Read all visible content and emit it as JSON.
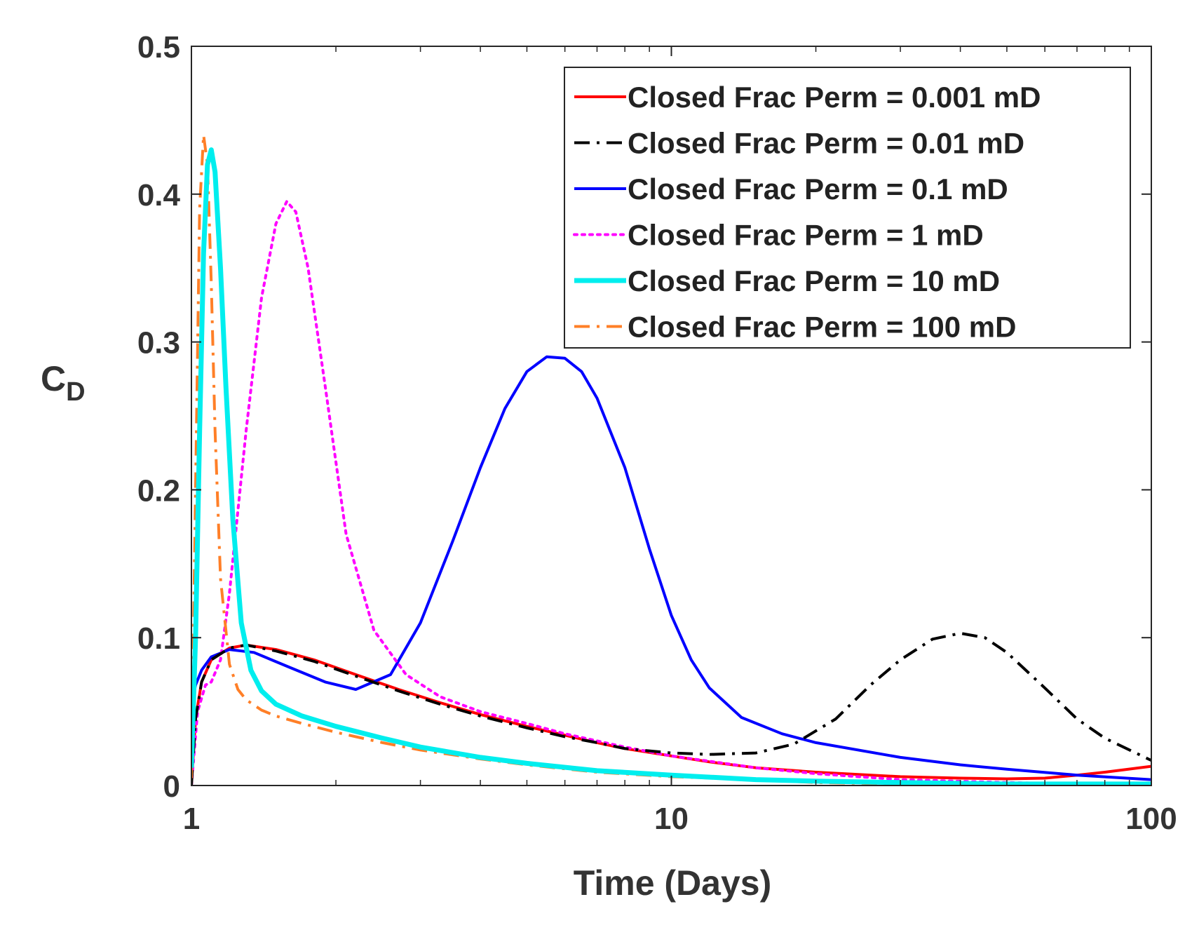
{
  "chart_data": {
    "type": "line",
    "title": "",
    "xlabel": "Time (Days)",
    "ylabel_main": "C",
    "ylabel_sub": "D",
    "xscale": "log",
    "xlim": [
      1,
      100
    ],
    "ylim": [
      0,
      0.5
    ],
    "xticks": [
      1,
      10,
      100
    ],
    "xtick_labels": [
      "1",
      "10",
      "100"
    ],
    "yticks": [
      0,
      0.1,
      0.2,
      0.3,
      0.4,
      0.5
    ],
    "ytick_labels": [
      "0",
      "0.1",
      "0.2",
      "0.3",
      "0.4",
      "0.5"
    ],
    "legend_position": "top-right",
    "series": [
      {
        "name": "Closed Frac Perm = 0.001 mD",
        "color": "#ff0000",
        "style": "solid",
        "x": [
          1,
          1.02,
          1.05,
          1.1,
          1.2,
          1.3,
          1.5,
          1.8,
          2.2,
          2.7,
          3.3,
          4,
          5,
          6,
          7,
          8,
          10,
          12,
          15,
          20,
          30,
          40,
          50,
          60,
          70,
          80,
          100
        ],
        "y": [
          0,
          0.045,
          0.07,
          0.085,
          0.093,
          0.095,
          0.092,
          0.085,
          0.075,
          0.065,
          0.056,
          0.048,
          0.04,
          0.034,
          0.029,
          0.025,
          0.02,
          0.016,
          0.012,
          0.009,
          0.006,
          0.005,
          0.0045,
          0.005,
          0.007,
          0.009,
          0.013
        ]
      },
      {
        "name": "Closed Frac Perm = 0.01 mD",
        "color": "#000000",
        "style": "dashdot",
        "x": [
          1,
          1.02,
          1.05,
          1.1,
          1.2,
          1.3,
          1.5,
          1.8,
          2.2,
          2.7,
          3.3,
          4,
          5,
          6,
          7,
          8,
          10,
          12,
          15,
          18,
          22,
          26,
          30,
          35,
          40,
          45,
          50,
          60,
          70,
          80,
          100
        ],
        "y": [
          0,
          0.045,
          0.07,
          0.085,
          0.093,
          0.095,
          0.091,
          0.084,
          0.074,
          0.064,
          0.055,
          0.047,
          0.039,
          0.033,
          0.029,
          0.025,
          0.022,
          0.021,
          0.022,
          0.028,
          0.045,
          0.068,
          0.085,
          0.099,
          0.103,
          0.1,
          0.09,
          0.066,
          0.045,
          0.032,
          0.017
        ]
      },
      {
        "name": "Closed Frac Perm = 0.1 mD",
        "color": "#0000ff",
        "style": "solid",
        "x": [
          1,
          1.02,
          1.05,
          1.1,
          1.2,
          1.35,
          1.6,
          1.9,
          2.2,
          2.6,
          3,
          3.5,
          4,
          4.5,
          5,
          5.5,
          6,
          6.5,
          7,
          8,
          9,
          10,
          11,
          12,
          14,
          17,
          20,
          30,
          40,
          50,
          70,
          100
        ],
        "y": [
          0.055,
          0.068,
          0.078,
          0.087,
          0.092,
          0.09,
          0.08,
          0.07,
          0.065,
          0.075,
          0.11,
          0.165,
          0.215,
          0.255,
          0.28,
          0.29,
          0.289,
          0.28,
          0.262,
          0.215,
          0.16,
          0.115,
          0.085,
          0.066,
          0.046,
          0.035,
          0.029,
          0.019,
          0.014,
          0.011,
          0.007,
          0.004
        ]
      },
      {
        "name": "Closed Frac Perm = 1 mD",
        "color": "#ff00ff",
        "style": "dotted",
        "x": [
          1,
          1.03,
          1.07,
          1.1,
          1.15,
          1.2,
          1.3,
          1.4,
          1.5,
          1.58,
          1.65,
          1.75,
          1.9,
          2.1,
          2.4,
          2.8,
          3.3,
          4,
          5,
          6,
          8,
          10,
          15,
          20,
          30,
          50,
          70,
          100
        ],
        "y": [
          0,
          0.05,
          0.068,
          0.07,
          0.085,
          0.13,
          0.24,
          0.33,
          0.38,
          0.395,
          0.388,
          0.35,
          0.27,
          0.17,
          0.105,
          0.075,
          0.06,
          0.05,
          0.042,
          0.035,
          0.026,
          0.02,
          0.012,
          0.008,
          0.004,
          0.002,
          0.001,
          0.001
        ]
      },
      {
        "name": "Closed Frac Perm = 10 mD",
        "color": "#00eeee",
        "style": "solid",
        "x": [
          1,
          1.02,
          1.04,
          1.06,
          1.08,
          1.1,
          1.12,
          1.15,
          1.18,
          1.22,
          1.27,
          1.33,
          1.4,
          1.5,
          1.7,
          2,
          2.5,
          3,
          4,
          5,
          7,
          10,
          15,
          20,
          30,
          50,
          70,
          100
        ],
        "y": [
          0.012,
          0.1,
          0.24,
          0.36,
          0.42,
          0.43,
          0.415,
          0.35,
          0.27,
          0.18,
          0.11,
          0.078,
          0.064,
          0.055,
          0.047,
          0.04,
          0.032,
          0.026,
          0.019,
          0.015,
          0.01,
          0.007,
          0.004,
          0.003,
          0.002,
          0.001,
          0.001,
          0.001
        ]
      },
      {
        "name": "Closed Frac Perm = 100 mD",
        "color": "#ff7f27",
        "style": "dashdot",
        "x": [
          1,
          1.02,
          1.04,
          1.06,
          1.08,
          1.1,
          1.12,
          1.15,
          1.2,
          1.25,
          1.3,
          1.4,
          1.5,
          1.7,
          2,
          2.5,
          3,
          4,
          5,
          7,
          10,
          15,
          20,
          30,
          50,
          70,
          100
        ],
        "y": [
          0.005,
          0.2,
          0.39,
          0.44,
          0.42,
          0.34,
          0.24,
          0.14,
          0.082,
          0.065,
          0.058,
          0.051,
          0.047,
          0.042,
          0.036,
          0.029,
          0.024,
          0.018,
          0.014,
          0.009,
          0.006,
          0.004,
          0.002,
          0.001,
          0.0005,
          0.0003,
          0.0002
        ]
      }
    ]
  }
}
